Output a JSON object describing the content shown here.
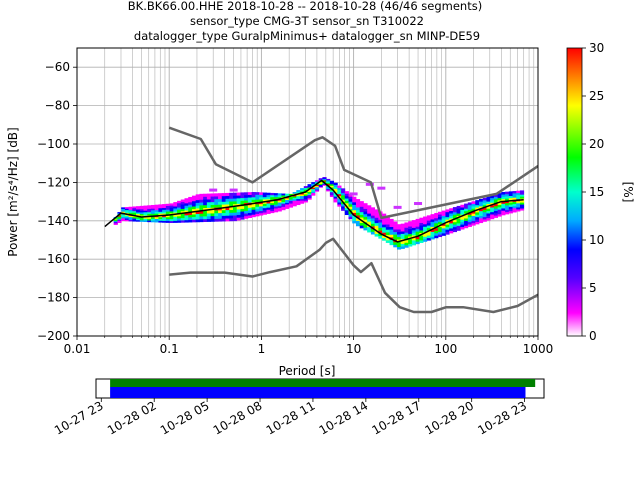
{
  "title_lines": [
    "BK.BK66.00.HHE   2018-10-28 -- 2018-10-28  (46/46 segments)",
    "sensor_type CMG-3T sensor_sn T310022",
    "datalogger_type GuralpMinimus+ datalogger_sn MINP-DE59"
  ],
  "chart_data": {
    "type": "heatmap",
    "title": "BK.BK66.00.HHE   2018-10-28 -- 2018-10-28  (46/46 segments)",
    "xlabel": "Period [s]",
    "ylabel": "Power [m²/s⁴/Hz] [dB]",
    "x_scale": "log",
    "xlim": [
      0.01,
      1000
    ],
    "ylim": [
      -200,
      -50
    ],
    "x_ticks": [
      0.01,
      0.1,
      1,
      10,
      100,
      1000
    ],
    "x_tick_labels": [
      "0.01",
      "0.1",
      "1",
      "10",
      "100",
      "1000"
    ],
    "y_ticks": [
      -200,
      -180,
      -160,
      -140,
      -120,
      -100,
      -80,
      -60
    ],
    "y_tick_labels": [
      "−200",
      "−180",
      "−160",
      "−140",
      "−120",
      "−100",
      "−80",
      "−60"
    ],
    "grid": true,
    "colorbar": {
      "label": "[%]",
      "range": [
        0,
        30
      ],
      "ticks": [
        0,
        5,
        10,
        15,
        20,
        25,
        30
      ],
      "tick_labels": [
        "0",
        "5",
        "10",
        "15",
        "20",
        "25",
        "30"
      ],
      "colormap": "pqlx"
    },
    "series": [
      {
        "name": "",
        "role": "high-noise-model",
        "color": "#666666",
        "points": [
          [
            0.1,
            -91.5
          ],
          [
            0.22,
            -97.4
          ],
          [
            0.32,
            -110.5
          ],
          [
            0.8,
            -120
          ],
          [
            3.8,
            -98
          ],
          [
            4.6,
            -96.5
          ],
          [
            6.3,
            -101
          ],
          [
            7.9,
            -113.5
          ],
          [
            15.4,
            -120
          ],
          [
            20,
            -138.5
          ],
          [
            354.8,
            -126
          ],
          [
            1000,
            -111.5
          ]
        ]
      },
      {
        "name": "",
        "role": "low-noise-model",
        "color": "#666666",
        "points": [
          [
            0.1,
            -168
          ],
          [
            0.17,
            -167
          ],
          [
            0.4,
            -167
          ],
          [
            0.8,
            -169
          ],
          [
            1.24,
            -166.7
          ],
          [
            2.4,
            -163.7
          ],
          [
            4.3,
            -155
          ],
          [
            5,
            -151.5
          ],
          [
            6,
            -149.4
          ],
          [
            10,
            -163.2
          ],
          [
            12,
            -166.7
          ],
          [
            15.6,
            -162.1
          ],
          [
            21.9,
            -177.5
          ],
          [
            31.6,
            -185
          ],
          [
            45,
            -187.5
          ],
          [
            70,
            -187.5
          ],
          [
            101,
            -185
          ],
          [
            154,
            -185
          ],
          [
            328,
            -187.5
          ],
          [
            600,
            -184.4
          ],
          [
            1000,
            -178.5
          ]
        ]
      },
      {
        "name": "",
        "role": "mode-line",
        "color": "#000000",
        "points": [
          [
            0.02,
            -143
          ],
          [
            0.03,
            -136
          ],
          [
            0.05,
            -138
          ],
          [
            0.1,
            -137
          ],
          [
            0.3,
            -134
          ],
          [
            0.6,
            -132
          ],
          [
            1.5,
            -129
          ],
          [
            3,
            -125
          ],
          [
            4.5,
            -119
          ],
          [
            6,
            -124
          ],
          [
            10,
            -137
          ],
          [
            20,
            -147
          ],
          [
            30,
            -151
          ],
          [
            50,
            -148
          ],
          [
            100,
            -141
          ],
          [
            200,
            -135
          ],
          [
            400,
            -130
          ],
          [
            700,
            -129
          ]
        ]
      }
    ],
    "heatmap_band": {
      "upper": [
        [
          0.025,
          -138
        ],
        [
          0.03,
          -133
        ],
        [
          0.1,
          -131
        ],
        [
          0.2,
          -126
        ],
        [
          0.8,
          -125
        ],
        [
          2,
          -126
        ],
        [
          4.5,
          -117
        ],
        [
          6,
          -120
        ],
        [
          10,
          -128
        ],
        [
          20,
          -136
        ],
        [
          30,
          -142
        ],
        [
          100,
          -134
        ],
        [
          400,
          -125
        ],
        [
          700,
          -124
        ]
      ],
      "lower": [
        [
          0.025,
          -142
        ],
        [
          0.03,
          -140
        ],
        [
          0.1,
          -141
        ],
        [
          0.5,
          -140
        ],
        [
          1.5,
          -135
        ],
        [
          3,
          -130
        ],
        [
          4.5,
          -121
        ],
        [
          6,
          -130
        ],
        [
          10,
          -142
        ],
        [
          20,
          -150
        ],
        [
          30,
          -155
        ],
        [
          100,
          -147
        ],
        [
          400,
          -137
        ],
        [
          700,
          -134
        ]
      ],
      "outliers": [
        [
          10,
          -126
        ],
        [
          15,
          -121
        ],
        [
          20,
          -123
        ],
        [
          30,
          -133
        ],
        [
          50,
          -131
        ],
        [
          0.3,
          -124
        ],
        [
          0.5,
          -124
        ]
      ]
    }
  },
  "timeline": {
    "x_tick_labels": [
      "10-27 23",
      "10-28 02",
      "10-28 05",
      "10-28 08",
      "10-28 11",
      "10-28 14",
      "10-28 17",
      "10-28 20",
      "10-28 23"
    ],
    "x_ticks_hours": [
      23,
      26,
      29,
      32,
      35,
      38,
      41,
      44,
      47
    ],
    "xlim_hours": [
      22.7,
      48.1
    ],
    "bars": [
      {
        "name": "data-availability",
        "color": "#008000",
        "start": 23.5,
        "end": 47.6
      },
      {
        "name": "processed-segments",
        "color": "#0000ff",
        "start": 23.5,
        "end": 47.05
      }
    ]
  }
}
